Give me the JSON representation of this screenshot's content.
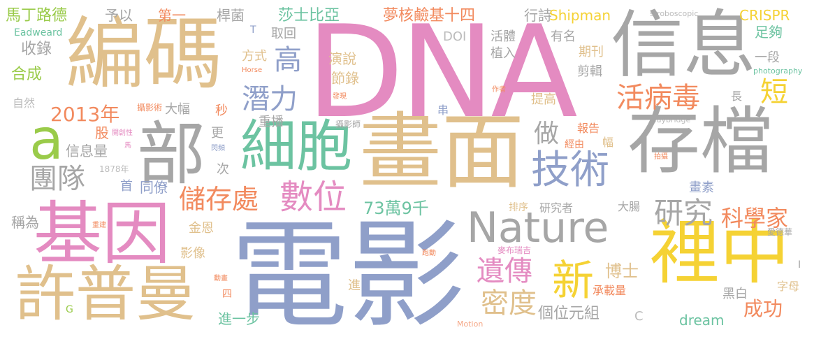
{
  "words": {
    "dna": "DNA",
    "dianying": "電影",
    "huamian": "畫面",
    "bianma": "編碼",
    "xinxi": "信息",
    "cundang": "存檔",
    "lizhong": "裡中",
    "jiyin": "基因",
    "xupuman": "許普曼",
    "bu": "部",
    "xibao": "細胞",
    "nature": "Nature",
    "jishu": "技術",
    "a": "a",
    "xin": "新",
    "chucunchu": "儲存處",
    "shuwei": "數位",
    "yanjiu": "研究",
    "huobingdu": "活病毒",
    "yichuan": "遺傳",
    "midu": "密度",
    "kexuejia": "科學家",
    "tuandui": "團隊",
    "qianli": "潛力",
    "gao": "高",
    "duan": "短",
    "y2013": "2013年",
    "zuo": "做",
    "wan73": "73萬9千",
    "chenggong": "成功",
    "boshi": "博士",
    "gewei": "個位元組",
    "madinglude": "馬丁路德",
    "shashibiya": "莎士比亞",
    "menghe": "夢核鹼基十四",
    "shipman": "Shipman",
    "crispr": "CRISPR",
    "shoulu": "收錄",
    "hecheng": "合成",
    "diyi": "第一",
    "yuyi": "予以",
    "ganjun": "桿菌",
    "xingshi": "行詩",
    "eadweard": "Eadweard",
    "t": "T",
    "quhui": "取回",
    "doi": "DOI",
    "huoti": "活體",
    "youming": "有名",
    "zugou": "足夠",
    "fangshi": "方式",
    "yanshuo": "演說",
    "zhiru": "植入",
    "qikan": "期刊",
    "yiduan": "一段",
    "horse": "Horse",
    "jielu": "節錄",
    "jianji": "剪輯",
    "photography": "photography",
    "ziran": "自然",
    "faxian": "發現",
    "zuozhe": "作者",
    "sheyingshu": "攝影術",
    "dafu": "大幅",
    "miao": "秒",
    "chongbo": "重播",
    "chuan": "串",
    "tigao": "提高",
    "zhang": "長",
    "baogao": "報告",
    "muybridge": "Muybridge",
    "gu": "股",
    "kaichuangxing": "開創性",
    "xinxiliang": "信息量",
    "geng": "更",
    "shanpin": "閃頻",
    "sheyingshi": "攝影師",
    "jingyou": "經由",
    "fu": "幅",
    "ma": "馬",
    "y1878": "1878年",
    "ci": "次",
    "shou": "首",
    "tongliao": "同僚",
    "paishe": "拍攝",
    "huasu": "畫素",
    "stroboscopic": "stroboscopic",
    "chengwei": "稱為",
    "jinen": "金恩",
    "paixu": "排序",
    "yanjiuzhe": "研究者",
    "dachang": "大腸",
    "chongjian": "重建",
    "yingxiang": "影像",
    "mabuliji": "麥布瑞吉",
    "aidehua": "愛德華",
    "paodong": "跑動",
    "dongzhe": "動畫",
    "i": "I",
    "jin": "進",
    "chengzailiang": "承載量",
    "heibai": "黑白",
    "zimu": "字母",
    "g": "G",
    "si": "四",
    "c": "C",
    "dream": "dream",
    "jinyibu": "進一步",
    "motion": "Motion"
  }
}
